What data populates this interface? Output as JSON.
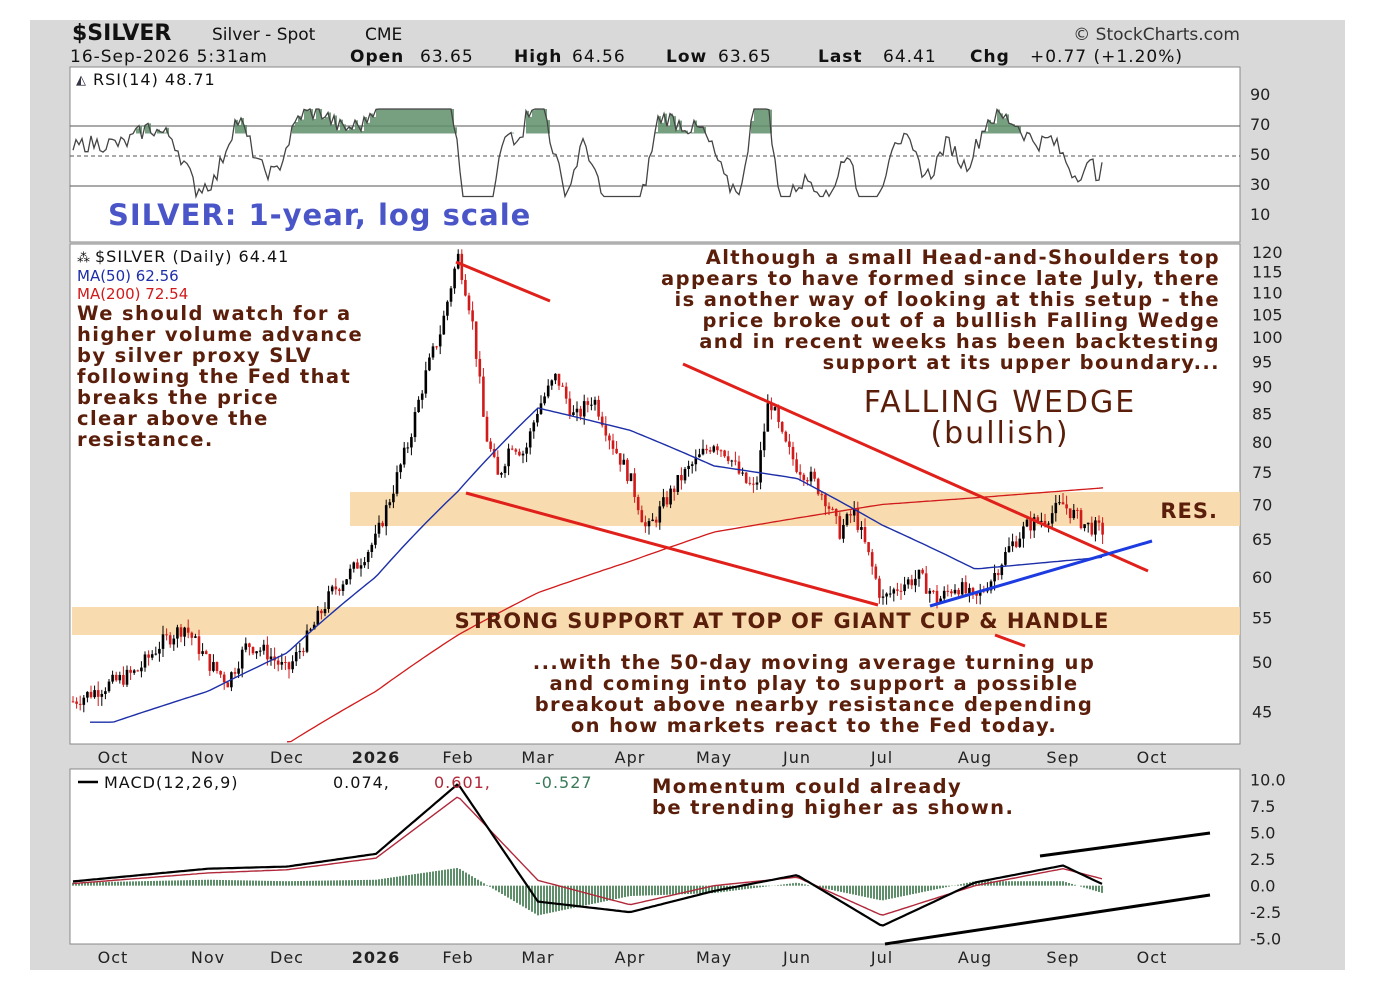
{
  "header": {
    "symbol": "$SILVER",
    "name": "Silver - Spot",
    "exchange": "CME",
    "watermark": "© StockCharts.com",
    "date": "16-Sep-2026 5:31am",
    "open_label": "Open",
    "open": "63.65",
    "high_label": "High",
    "high": "64.56",
    "low_label": "Low",
    "low": "63.65",
    "last_label": "Last",
    "last": "64.41",
    "chg_label": "Chg",
    "chg": "+0.77 (+1.20%)"
  },
  "rsi": {
    "label": "RSI(14) 48.71",
    "ticks": [
      "90",
      "70",
      "50",
      "30",
      "10"
    ],
    "title": "SILVER: 1-year, log scale"
  },
  "price": {
    "legend_symbol": "$SILVER (Daily) 64.41",
    "legend_ma50": "MA(50) 62.56",
    "legend_ma200": "MA(200) 72.54",
    "ticks": [
      "120",
      "115",
      "110",
      "105",
      "100",
      "95",
      "90",
      "85",
      "80",
      "75",
      "70",
      "65",
      "60",
      "55",
      "50",
      "45"
    ],
    "res_label": "RES.",
    "support_label": "STRONG SUPPORT AT TOP OF GIANT CUP & HANDLE",
    "wedge_title": "FALLING WEDGE",
    "wedge_subtitle": "(bullish)",
    "note_left": [
      "We should watch for a",
      "higher volume advance",
      "by silver proxy SLV",
      "following the Fed that",
      "breaks the price",
      "clear above the",
      "resistance."
    ],
    "note_right": [
      "Although a small Head-and-Shoulders top",
      "appears to have formed since late July, there",
      "is another way of looking at this setup - the",
      "price broke out of a bullish Falling Wedge",
      "and in recent weeks has been backtesting",
      "support at its upper boundary..."
    ],
    "note_bottom": [
      "...with the 50-day moving average turning up",
      "and coming into play to support a possible",
      "breakout above nearby resistance depending",
      "on how markets react to the Fed today."
    ]
  },
  "xaxis": [
    "Oct",
    "Nov",
    "Dec",
    "2026",
    "Feb",
    "Mar",
    "Apr",
    "May",
    "Jun",
    "Jul",
    "Aug",
    "Sep",
    "Oct"
  ],
  "macd": {
    "label_prefix": "MACD(12,26,9)",
    "v1": "0.074,",
    "v2": "0.601,",
    "v3": "-0.527",
    "ticks": [
      "10.0",
      "7.5",
      "5.0",
      "2.5",
      "0.0",
      "-2.5",
      "-5.0"
    ],
    "note": [
      "Momentum could already",
      "be trending higher as shown."
    ]
  },
  "colors": {
    "candle_up": "#000000",
    "candle_down": "#d11a1a",
    "ma50": "#1c2fa8",
    "ma200": "#d11a1a",
    "band": "#f7d7a6",
    "wedge": "#e0201a",
    "support_line": "#1c3be0",
    "rsi_fill": "#5f8f6a",
    "annotation": "#5a1e0a",
    "title_blue": "#4a55c8"
  },
  "chart_data": [
    {
      "type": "candlestick",
      "title": "SILVER: 1-year, log scale",
      "scale": "log",
      "ylim": [
        42,
        122
      ],
      "x_ticks": [
        "Oct",
        "Nov",
        "Dec",
        "2026",
        "Feb",
        "Mar",
        "Apr",
        "May",
        "Jun",
        "Jul",
        "Aug",
        "Sep",
        "Oct"
      ],
      "series": [
        {
          "name": "$SILVER (Daily)",
          "last": 64.41
        },
        {
          "name": "MA(50)",
          "last": 62.56
        },
        {
          "name": "MA(200)",
          "last": 72.54
        }
      ],
      "price_path": [
        [
          "Oct",
          46
        ],
        [
          "Oct",
          49
        ],
        [
          "Oct",
          52
        ],
        [
          "Oct",
          54
        ],
        [
          "Nov",
          50
        ],
        [
          "Nov",
          48
        ],
        [
          "Nov",
          52
        ],
        [
          "Nov",
          51
        ],
        [
          "Dec",
          49
        ],
        [
          "Dec",
          53
        ],
        [
          "Dec",
          58
        ],
        [
          "Dec",
          61
        ],
        [
          "2026",
          65
        ],
        [
          "2026",
          72
        ],
        [
          "2026",
          80
        ],
        [
          "2026",
          92
        ],
        [
          "2026",
          102
        ],
        [
          "Feb",
          119
        ],
        [
          "Feb",
          105
        ],
        [
          "Feb",
          82
        ],
        [
          "Feb",
          74
        ],
        [
          "Feb",
          80
        ],
        [
          "Feb",
          78
        ],
        [
          "Mar",
          86
        ],
        [
          "Mar",
          92
        ],
        [
          "Mar",
          84
        ],
        [
          "Mar",
          88
        ],
        [
          "Mar",
          80
        ],
        [
          "Apr",
          74
        ],
        [
          "Apr",
          66
        ],
        [
          "Apr",
          70
        ],
        [
          "Apr",
          74
        ],
        [
          "Apr",
          77
        ],
        [
          "May",
          80
        ],
        [
          "May",
          78
        ],
        [
          "May",
          74
        ],
        [
          "May",
          72
        ],
        [
          "May",
          88
        ],
        [
          "May",
          80
        ],
        [
          "Jun",
          76
        ],
        [
          "Jun",
          74
        ],
        [
          "Jun",
          71
        ],
        [
          "Jun",
          66
        ],
        [
          "Jun",
          69
        ],
        [
          "Jun",
          63
        ],
        [
          "Jul",
          57
        ],
        [
          "Jul",
          59
        ],
        [
          "Jul",
          60
        ],
        [
          "Jul",
          57
        ],
        [
          "Jul",
          59
        ],
        [
          "Aug",
          57
        ],
        [
          "Aug",
          60
        ],
        [
          "Aug",
          64
        ],
        [
          "Aug",
          67
        ],
        [
          "Aug",
          68
        ],
        [
          "Sep",
          70
        ],
        [
          "Sep",
          67
        ],
        [
          "Sep",
          66
        ],
        [
          "Sep",
          64.41
        ]
      ],
      "ma50_path": [
        [
          "Oct",
          44
        ],
        [
          "Nov",
          47
        ],
        [
          "Dec",
          51
        ],
        [
          "2026",
          60
        ],
        [
          "Feb",
          72
        ],
        [
          "Mar",
          86
        ],
        [
          "Apr",
          82
        ],
        [
          "May",
          76
        ],
        [
          "Jun",
          74
        ],
        [
          "Jul",
          67
        ],
        [
          "Aug",
          61
        ],
        [
          "Sep",
          62.56
        ]
      ],
      "ma200_path": [
        [
          "Dec",
          42
        ],
        [
          "2026",
          47
        ],
        [
          "Feb",
          53
        ],
        [
          "Mar",
          58
        ],
        [
          "Apr",
          62
        ],
        [
          "May",
          66
        ],
        [
          "Jun",
          68
        ],
        [
          "Jul",
          70
        ],
        [
          "Aug",
          71
        ],
        [
          "Sep",
          72.54
        ]
      ],
      "bands": [
        {
          "label": "RES.",
          "range": [
            66,
            71
          ]
        },
        {
          "label": "STRONG SUPPORT AT TOP OF GIANT CUP & HANDLE",
          "range": [
            51,
            54
          ]
        }
      ]
    },
    {
      "type": "line",
      "name": "RSI(14)",
      "last": 48.71,
      "ylim": [
        0,
        100
      ],
      "y_ticks": [
        90,
        70,
        50,
        30,
        10
      ]
    },
    {
      "type": "line",
      "name": "MACD(12,26,9)",
      "values": {
        "macd": 0.074,
        "signal": 0.601,
        "histogram": -0.527
      },
      "ylim": [
        -5.5,
        11
      ],
      "y_ticks": [
        10.0,
        7.5,
        5.0,
        2.5,
        0.0,
        -2.5,
        -5.0
      ],
      "macd_path": [
        [
          "Oct",
          0.4
        ],
        [
          "Nov",
          1.6
        ],
        [
          "Dec",
          1.8
        ],
        [
          "2026",
          3.0
        ],
        [
          "Feb",
          9.6
        ],
        [
          "Mar",
          -1.5
        ],
        [
          "Apr",
          -2.5
        ],
        [
          "May",
          -0.5
        ],
        [
          "Jun",
          1.0
        ],
        [
          "Jul",
          -3.8
        ],
        [
          "Aug",
          0.3
        ],
        [
          "Sep",
          1.9
        ],
        [
          "Oct",
          0.074
        ]
      ],
      "signal_path": [
        [
          "Oct",
          0.2
        ],
        [
          "Nov",
          1.2
        ],
        [
          "Dec",
          1.5
        ],
        [
          "2026",
          2.6
        ],
        [
          "Feb",
          8.4
        ],
        [
          "Mar",
          0.5
        ],
        [
          "Apr",
          -1.8
        ],
        [
          "May",
          0.0
        ],
        [
          "Jun",
          0.8
        ],
        [
          "Jul",
          -2.8
        ],
        [
          "Aug",
          0.0
        ],
        [
          "Sep",
          1.6
        ],
        [
          "Oct",
          0.601
        ]
      ]
    }
  ]
}
